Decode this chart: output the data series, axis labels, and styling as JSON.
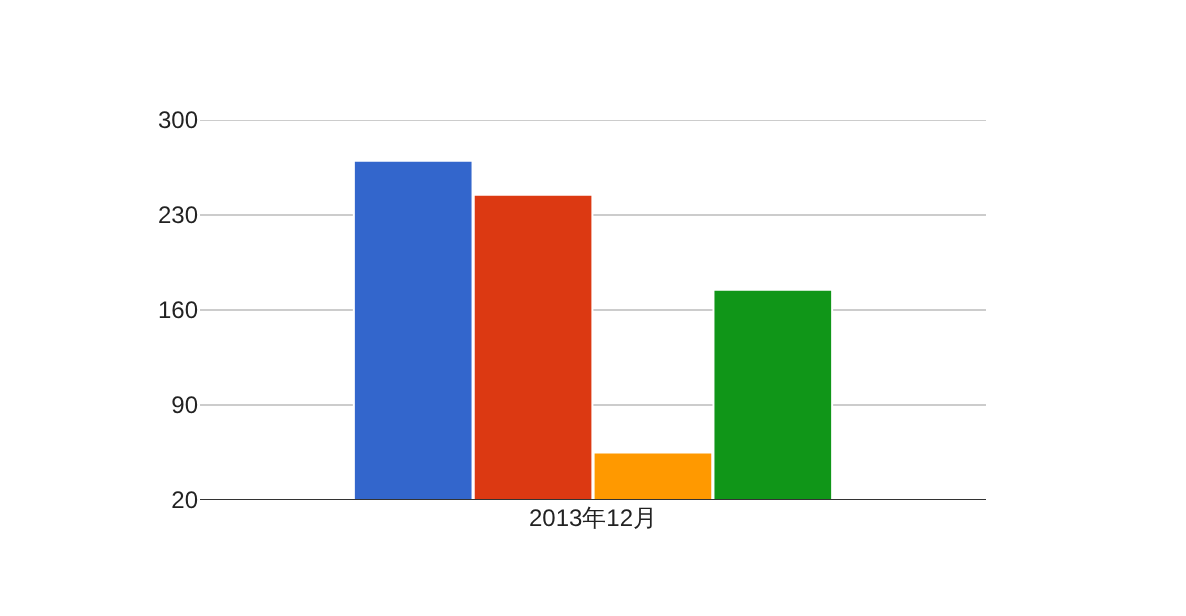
{
  "chart_data": {
    "type": "bar",
    "categories": [
      "2013年12月"
    ],
    "series": [
      {
        "color": "#3366cc",
        "values": [
          270
        ]
      },
      {
        "color": "#dc3912",
        "values": [
          245
        ]
      },
      {
        "color": "#ff9900",
        "values": [
          55
        ]
      },
      {
        "color": "#109618",
        "values": [
          175
        ]
      }
    ],
    "ylim": [
      20,
      300
    ],
    "yticks": [
      20,
      90,
      160,
      230,
      300
    ],
    "grid": "y"
  }
}
